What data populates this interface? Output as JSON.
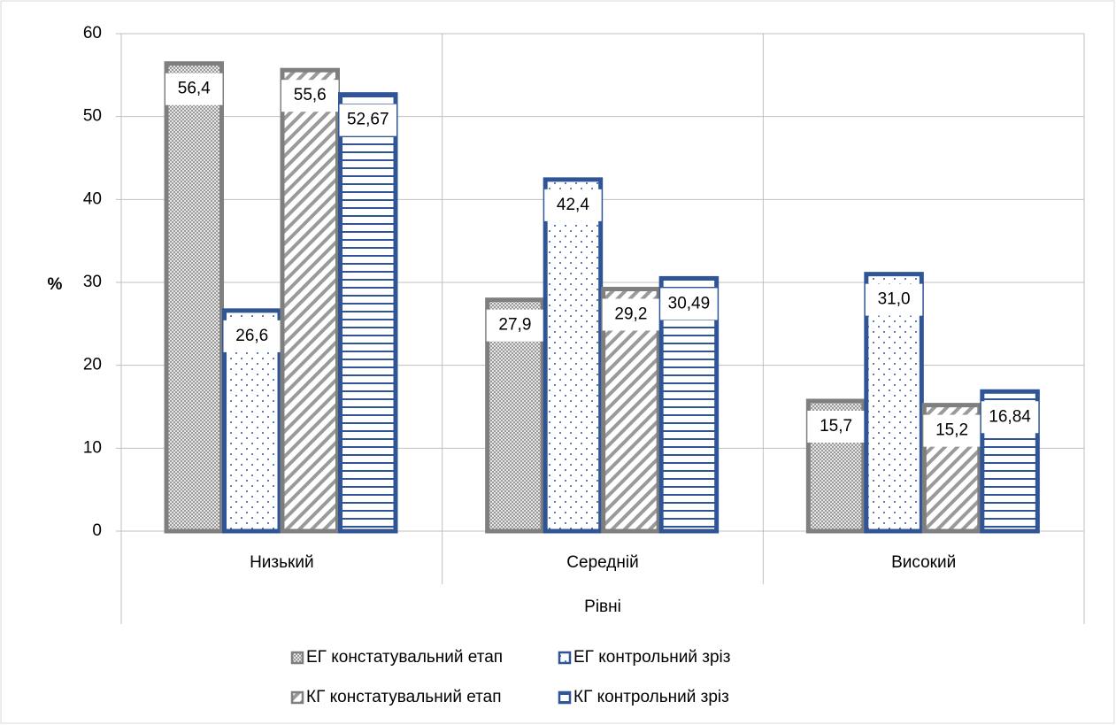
{
  "chart_data": {
    "type": "bar",
    "categories": [
      "Низький",
      "Середній",
      "Високий"
    ],
    "x_label": "Рівні",
    "y_label": "%",
    "series": [
      {
        "name": "ЕГ констатувальний етап",
        "color": "#7f7f7f",
        "values": [
          56.4,
          27.9,
          15.7
        ],
        "value_labels": [
          "56,4",
          "27,9",
          "15,7"
        ]
      },
      {
        "name": "ЕГ контрольний зріз",
        "color": "#2f5597",
        "values": [
          26.6,
          42.4,
          31.0
        ],
        "value_labels": [
          "26,6",
          "42,4",
          "31,0"
        ]
      },
      {
        "name": "КГ констатувальний етап",
        "color": "#7f7f7f",
        "values": [
          55.6,
          29.2,
          15.2
        ],
        "value_labels": [
          "55,6",
          "29,2",
          "15,2"
        ]
      },
      {
        "name": "КГ контрольний зріз",
        "color": "#2f5597",
        "values": [
          52.67,
          30.49,
          16.84
        ],
        "value_labels": [
          "52,67",
          "30,49",
          "16,84"
        ]
      }
    ],
    "ylim": [
      0,
      60
    ],
    "yticks": [
      0,
      10,
      20,
      30,
      40,
      50,
      60
    ],
    "grid": true,
    "legend": "bottom"
  }
}
